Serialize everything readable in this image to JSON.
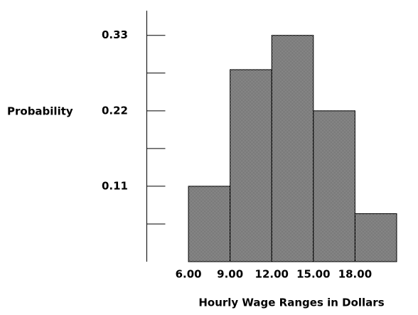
{
  "chart_data": {
    "type": "histogram",
    "y_label": "Probability",
    "x_label": "Hourly Wage Ranges in Dollars",
    "bins": [
      6,
      9,
      12,
      15,
      18,
      21
    ],
    "values": [
      0.11,
      0.28,
      0.33,
      0.22,
      0.07
    ],
    "xlim": [
      3,
      21
    ],
    "xticks": [
      {
        "value": 6,
        "label": "6.00"
      },
      {
        "value": 9,
        "label": "9.00"
      },
      {
        "value": 12,
        "label": "12.00"
      },
      {
        "value": 15,
        "label": "15.00"
      },
      {
        "value": 18,
        "label": "18.00"
      }
    ],
    "ylim": [
      0,
      0.366
    ],
    "yticks": [
      0.11,
      0.22,
      0.33
    ],
    "minor_yticks": [
      0.055,
      0.165,
      0.275
    ],
    "pattern": "checker"
  }
}
